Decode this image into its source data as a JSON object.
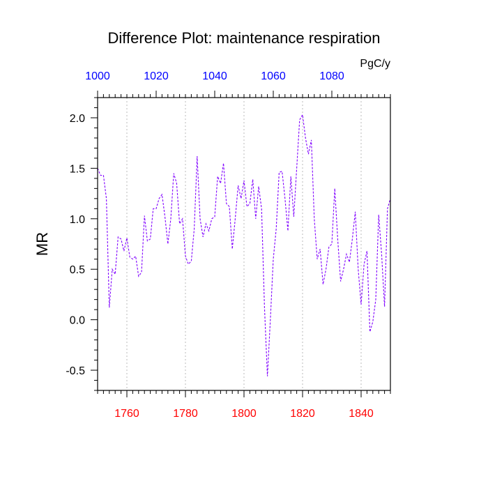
{
  "chart_data": {
    "type": "line",
    "title": "Difference Plot: maintenance respiration",
    "units": "PgC/y",
    "ylabel": "MR",
    "ylim": [
      -0.7,
      2.2
    ],
    "y_ticks": [
      -0.5,
      0.0,
      0.5,
      1.0,
      1.5,
      2.0
    ],
    "y_tick_labels": [
      "-0.5",
      "0.0",
      "0.5",
      "1.0",
      "1.5",
      "2.0"
    ],
    "bottom_axis": {
      "range": [
        1750,
        1850
      ],
      "ticks": [
        1760,
        1780,
        1800,
        1820,
        1840
      ],
      "tick_labels": [
        "1760",
        "1780",
        "1800",
        "1820",
        "1840"
      ],
      "color": "#ff0000"
    },
    "top_axis": {
      "range": [
        1000,
        1100
      ],
      "ticks": [
        1000,
        1020,
        1040,
        1060,
        1080
      ],
      "tick_labels": [
        "1000",
        "1020",
        "1040",
        "1060",
        "1080"
      ],
      "color": "#0000ff"
    },
    "grid": "vertical-dotted",
    "line_color": "#8000ff",
    "series": [
      {
        "x": [
          1750,
          1751,
          1752,
          1753,
          1754,
          1755,
          1756,
          1757,
          1758,
          1759,
          1760,
          1761,
          1762,
          1763,
          1764,
          1765,
          1766,
          1767,
          1768,
          1769,
          1770,
          1771,
          1772,
          1773,
          1774,
          1775,
          1776,
          1777,
          1778,
          1779,
          1780,
          1781,
          1782,
          1783,
          1784,
          1785,
          1786,
          1787,
          1788,
          1789,
          1790,
          1791,
          1792,
          1793,
          1794,
          1795,
          1796,
          1797,
          1798,
          1799,
          1800,
          1801,
          1802,
          1803,
          1804,
          1805,
          1806,
          1807,
          1808,
          1809,
          1810,
          1811,
          1812,
          1813,
          1814,
          1815,
          1816,
          1817,
          1818,
          1819,
          1820,
          1821,
          1822,
          1823,
          1824,
          1825,
          1826,
          1827,
          1828,
          1829,
          1830,
          1831,
          1832,
          1833,
          1834,
          1835,
          1836,
          1837,
          1838,
          1839,
          1840,
          1841,
          1842,
          1843,
          1844,
          1845,
          1846,
          1847,
          1848,
          1849,
          1850
        ],
        "values": [
          1.5,
          1.43,
          1.43,
          1.2,
          0.12,
          0.5,
          0.45,
          0.82,
          0.8,
          0.68,
          0.81,
          0.62,
          0.6,
          0.63,
          0.43,
          0.47,
          1.03,
          0.78,
          0.8,
          1.1,
          1.1,
          1.2,
          1.24,
          1.02,
          0.75,
          1.0,
          1.45,
          1.35,
          0.95,
          1.0,
          0.63,
          0.55,
          0.58,
          0.9,
          1.62,
          1.0,
          0.82,
          0.95,
          0.88,
          1.0,
          1.02,
          1.42,
          1.35,
          1.55,
          1.15,
          1.12,
          0.7,
          1.0,
          1.33,
          1.2,
          1.38,
          1.12,
          1.15,
          1.39,
          1.0,
          1.32,
          1.1,
          0.12,
          -0.56,
          0.0,
          0.6,
          0.9,
          1.46,
          1.47,
          1.2,
          0.88,
          1.42,
          1.02,
          1.5,
          1.98,
          2.03,
          1.8,
          1.64,
          1.78,
          1.0,
          0.6,
          0.7,
          0.35,
          0.5,
          0.72,
          0.75,
          1.3,
          0.8,
          0.38,
          0.5,
          0.65,
          0.57,
          0.8,
          1.07,
          0.5,
          0.15,
          0.55,
          0.68,
          -0.12,
          -0.02,
          0.2,
          1.04,
          0.65,
          0.13,
          1.1,
          1.2
        ]
      }
    ]
  }
}
